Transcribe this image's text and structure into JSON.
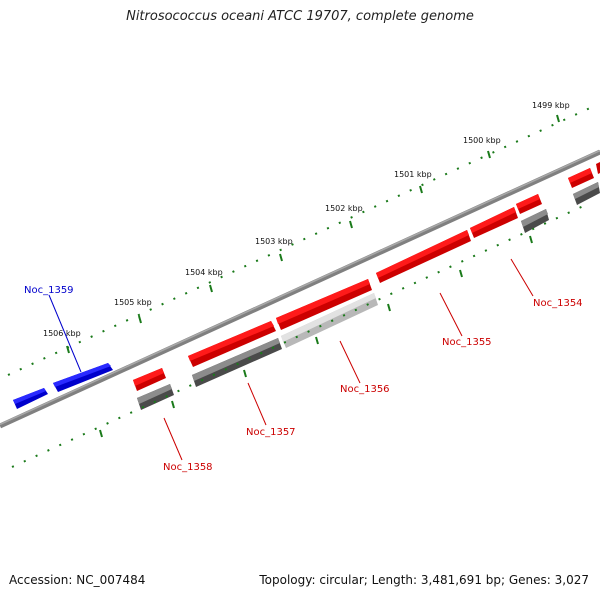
{
  "title": "Nitrosococcus oceani ATCC 19707, complete genome",
  "footer": {
    "accession": "Accession: NC_007484",
    "summary": "Topology: circular; Length: 3,481,691 bp; Genes: 3,027"
  },
  "colors": {
    "forward_gene": "#ff0000",
    "reverse_gene": "#0000ff",
    "cds": "#5a5a5a",
    "cds_light": "#c8c8c8",
    "backbone": "#808080",
    "tick": "#1a7a1a",
    "label_red": "#cc0000",
    "label_blue": "#0000cc"
  },
  "kbp_labels": [
    "1499 kbp",
    "1500 kbp",
    "1501 kbp",
    "1502 kbp",
    "1503 kbp",
    "1504 kbp",
    "1505 kbp",
    "1506 kbp"
  ],
  "gene_labels": [
    "Noc_1354",
    "Noc_1355",
    "Noc_1356",
    "Noc_1357",
    "Noc_1358",
    "Noc_1359"
  ]
}
